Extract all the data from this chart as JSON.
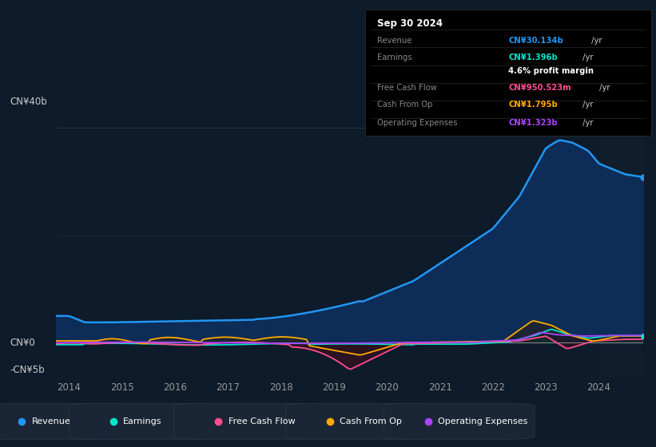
{
  "bg_color": "#0d1b2a",
  "chart_bg": "#0d1b2a",
  "title": "Sep 30 2024",
  "ylabel_top": "CN¥40b",
  "ylabel_zero": "CN¥0",
  "ylabel_bottom": "-CN¥5b",
  "x_ticks": [
    2014,
    2015,
    2016,
    2017,
    2018,
    2019,
    2020,
    2021,
    2022,
    2023,
    2024
  ],
  "legend": [
    {
      "label": "Revenue",
      "color": "#2196f3"
    },
    {
      "label": "Earnings",
      "color": "#00e5cc"
    },
    {
      "label": "Free Cash Flow",
      "color": "#ff4d8f"
    },
    {
      "label": "Cash From Op",
      "color": "#ffaa00"
    },
    {
      "label": "Operating Expenses",
      "color": "#aa44ff"
    }
  ],
  "rev_color": "#2196f3",
  "earn_color": "#00e5cc",
  "fcf_color": "#ff4d8f",
  "cfo_color": "#ffaa00",
  "opex_color": "#aa44ff",
  "rev_fill": "#0d3a6a",
  "table_rows": [
    {
      "label": "Revenue",
      "value": "CN¥30.134b /yr",
      "value_color": "#2196f3",
      "label_color": "#888888"
    },
    {
      "label": "Earnings",
      "value": "CN¥1.396b /yr",
      "value_color": "#00e5cc",
      "label_color": "#888888"
    },
    {
      "label": "",
      "value": "4.6% profit margin",
      "value_color": "#ffffff",
      "label_color": "#888888"
    },
    {
      "label": "Free Cash Flow",
      "value": "CN¥950.523m /yr",
      "value_color": "#ff4d8f",
      "label_color": "#888888"
    },
    {
      "label": "Cash From Op",
      "value": "CN¥1.795b /yr",
      "value_color": "#ffaa00",
      "label_color": "#888888"
    },
    {
      "label": "Operating Expenses",
      "value": "CN¥1.323b /yr",
      "value_color": "#aa44ff",
      "label_color": "#888888"
    }
  ]
}
